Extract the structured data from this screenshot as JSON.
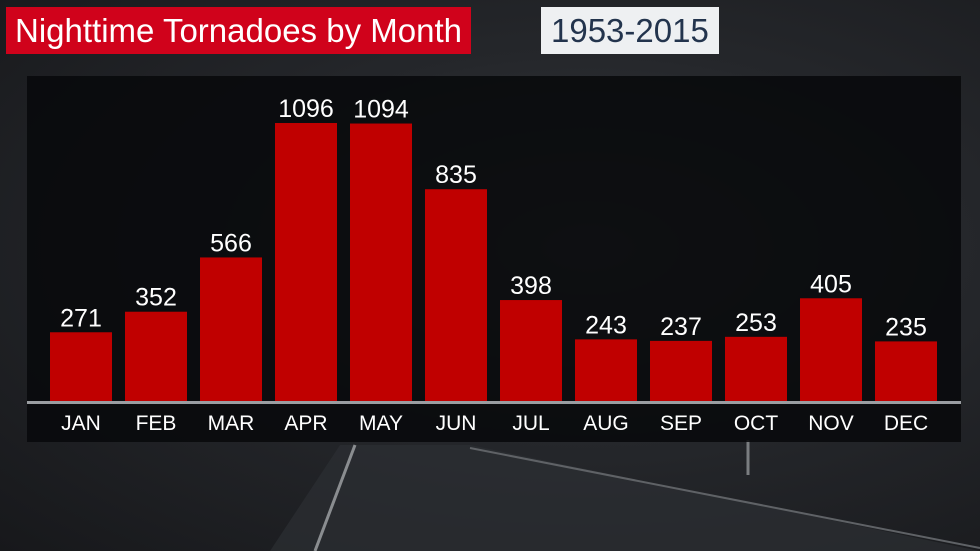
{
  "header": {
    "title": "Nighttime Tornadoes by Month",
    "subtitle": "1953-2015"
  },
  "colors": {
    "bar": "#c00000",
    "title_bg": "#d0021b",
    "subtitle_bg": "#eef0f2",
    "subtitle_text": "#23344d"
  },
  "chart_data": {
    "type": "bar",
    "title": "Nighttime Tornadoes by Month",
    "subtitle": "1953-2015",
    "categories": [
      "JAN",
      "FEB",
      "MAR",
      "APR",
      "MAY",
      "JUN",
      "JUL",
      "AUG",
      "SEP",
      "OCT",
      "NOV",
      "DEC"
    ],
    "values": [
      271,
      352,
      566,
      1096,
      1094,
      835,
      398,
      243,
      237,
      253,
      405,
      235
    ],
    "ylim": [
      0,
      1100
    ],
    "grid": false,
    "data_labels": true
  }
}
